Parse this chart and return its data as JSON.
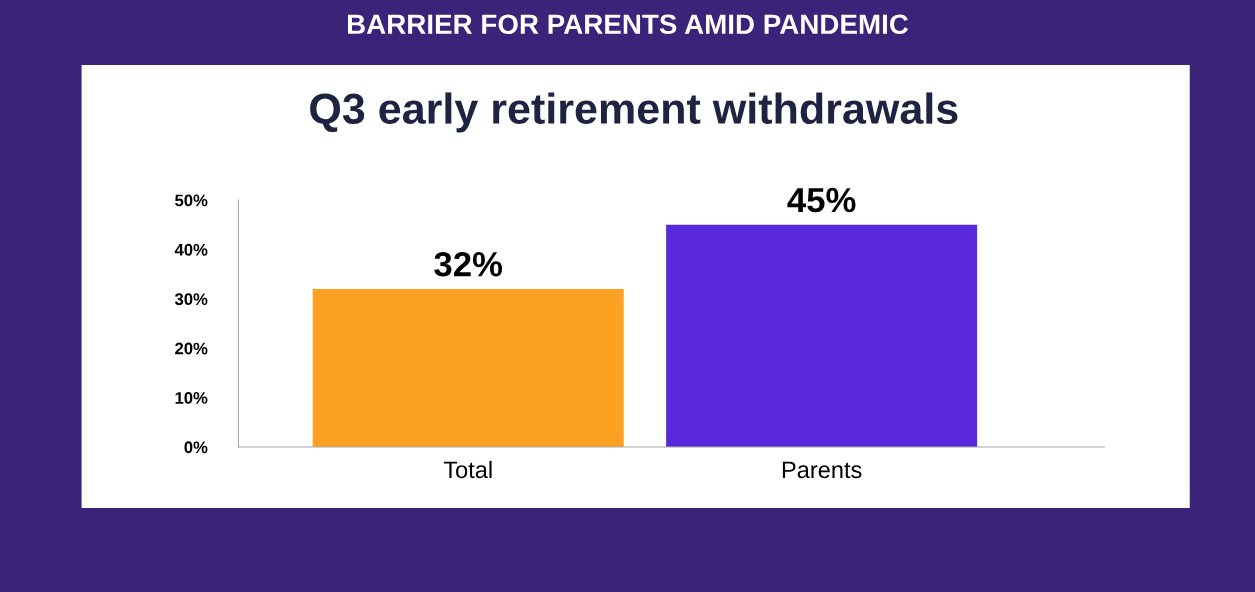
{
  "chart_data": {
    "type": "bar",
    "title": "Q3 early retirement withdrawals",
    "annotations": [
      "BARRIER FOR PARENTS AMID PANDEMIC"
    ],
    "categories": [
      "Total",
      "Parents"
    ],
    "values": [
      32,
      45
    ],
    "colors": [
      "#fca122",
      "#5a28db"
    ],
    "value_labels": [
      "32%",
      "45%"
    ],
    "ylim": [
      0,
      50
    ],
    "yticks": [
      {
        "value": 0,
        "label": "0%"
      },
      {
        "value": 10,
        "label": "10%"
      },
      {
        "value": 20,
        "label": "20%"
      },
      {
        "value": 30,
        "label": "30%"
      },
      {
        "value": 40,
        "label": "40%"
      },
      {
        "value": 50,
        "label": "50%"
      }
    ]
  }
}
